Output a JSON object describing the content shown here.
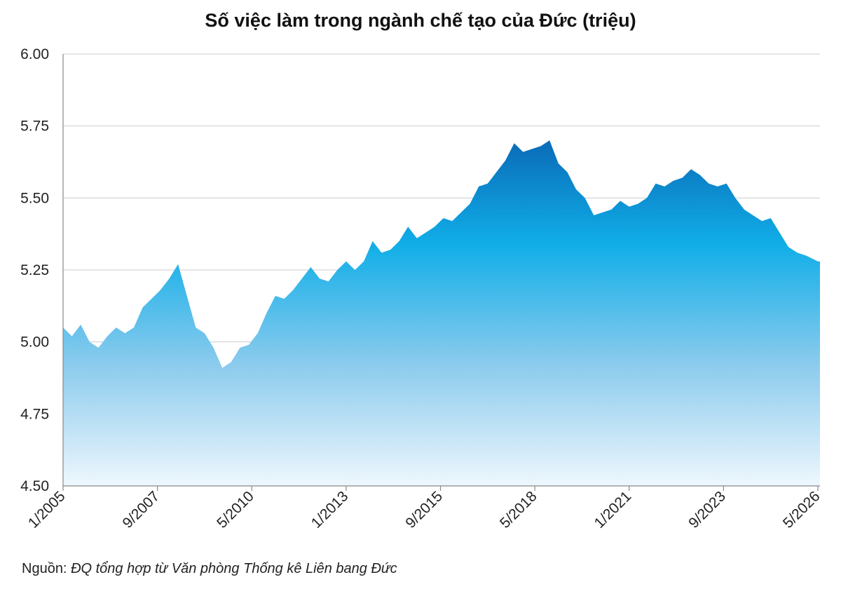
{
  "chart_data": {
    "type": "area",
    "title": "Số việc làm trong ngành chế tạo của Đức (triệu)",
    "xlabel": "",
    "ylabel": "",
    "ylim": [
      4.5,
      6.0
    ],
    "y_ticks": [
      "6.00",
      "5.75",
      "5.50",
      "5.25",
      "5.00",
      "4.75",
      "4.50"
    ],
    "x_ticks": [
      "1/2005",
      "9/2007",
      "5/2010",
      "1/2013",
      "9/2015",
      "5/2018",
      "1/2021",
      "9/2023",
      "5/2026"
    ],
    "grid": "horizontal",
    "legend": "none",
    "colors": {
      "top": "#0a6bb8",
      "mid": "#10aee8",
      "low": "#8ccbed",
      "bottom": "#eef7fd",
      "grid": "#cccccc"
    },
    "series": [
      {
        "x": [
          "2005-01",
          "2005-04",
          "2005-07",
          "2005-10",
          "2006-01",
          "2006-04",
          "2006-07",
          "2006-10",
          "2007-01",
          "2007-04",
          "2007-07",
          "2007-10",
          "2008-01",
          "2008-04",
          "2008-07",
          "2008-10",
          "2009-01",
          "2009-04",
          "2009-07",
          "2009-10",
          "2010-01",
          "2010-04",
          "2010-07",
          "2010-10",
          "2011-01",
          "2011-04",
          "2011-07",
          "2011-10",
          "2012-01",
          "2012-04",
          "2012-07",
          "2012-10",
          "2013-01",
          "2013-04",
          "2013-07",
          "2013-10",
          "2014-01",
          "2014-04",
          "2014-07",
          "2014-10",
          "2015-01",
          "2015-04",
          "2015-07",
          "2015-10",
          "2016-01",
          "2016-04",
          "2016-07",
          "2016-10",
          "2017-01",
          "2017-04",
          "2017-07",
          "2017-10",
          "2018-01",
          "2018-04",
          "2018-07",
          "2018-10",
          "2019-01",
          "2019-04",
          "2019-07",
          "2019-10",
          "2020-01",
          "2020-04",
          "2020-07",
          "2020-10",
          "2021-01",
          "2021-04",
          "2021-07",
          "2021-10",
          "2022-01",
          "2022-04",
          "2022-07",
          "2022-10",
          "2023-01",
          "2023-04",
          "2023-07",
          "2023-10",
          "2024-01",
          "2024-04",
          "2024-07",
          "2024-10",
          "2025-01",
          "2025-04",
          "2025-07",
          "2025-10",
          "2026-01",
          "2026-05"
        ],
        "y": [
          5.05,
          5.02,
          5.06,
          5.0,
          4.98,
          5.02,
          5.05,
          5.03,
          5.05,
          5.12,
          5.15,
          5.18,
          5.22,
          5.27,
          5.16,
          5.05,
          5.03,
          4.98,
          4.91,
          4.93,
          4.98,
          4.99,
          5.03,
          5.1,
          5.16,
          5.15,
          5.18,
          5.22,
          5.26,
          5.22,
          5.21,
          5.25,
          5.28,
          5.25,
          5.28,
          5.35,
          5.31,
          5.32,
          5.35,
          5.4,
          5.36,
          5.38,
          5.4,
          5.43,
          5.42,
          5.45,
          5.48,
          5.54,
          5.55,
          5.59,
          5.63,
          5.69,
          5.66,
          5.67,
          5.68,
          5.7,
          5.62,
          5.59,
          5.53,
          5.5,
          5.44,
          5.45,
          5.46,
          5.49,
          5.47,
          5.48,
          5.5,
          5.55,
          5.54,
          5.56,
          5.57,
          5.6,
          5.58,
          5.55,
          5.54,
          5.55,
          5.5,
          5.46,
          5.44,
          5.42,
          5.43,
          5.38,
          5.33,
          5.31,
          5.3,
          5.28
        ]
      }
    ]
  },
  "source": {
    "label": "Nguồn:",
    "text": "ĐQ tổng hợp từ Văn phòng Thống kê Liên bang Đức"
  }
}
